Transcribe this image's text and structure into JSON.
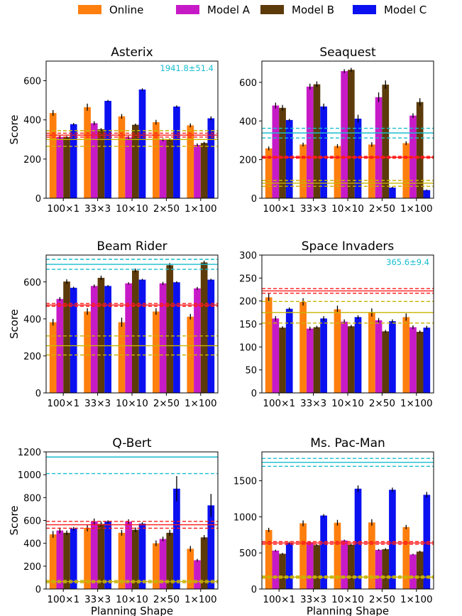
{
  "legend": {
    "position": "top-center",
    "items": [
      {
        "name": "Online",
        "color": "#ff7f0e"
      },
      {
        "name": "Model A",
        "color": "#c71ac7"
      },
      {
        "name": "Model B",
        "color": "#5c3a0a"
      },
      {
        "name": "Model C",
        "color": "#0a10f0"
      }
    ]
  },
  "colors": {
    "cyan": "#17becf",
    "red": "#ff1a1a",
    "olive": "#c8b400",
    "errorbar": "#000000"
  },
  "chart_data": [
    {
      "type": "bar",
      "title": "Asterix",
      "ylabel": "Score",
      "xlabel": "",
      "categories": [
        "100×1",
        "33×3",
        "10×10",
        "2×50",
        "1×100"
      ],
      "ylim": [
        0,
        700
      ],
      "yticks": [
        0,
        200,
        400,
        600
      ],
      "series": [
        {
          "name": "Online",
          "values": [
            435,
            465,
            418,
            388,
            372
          ],
          "errors": [
            15,
            18,
            12,
            12,
            10
          ]
        },
        {
          "name": "Model A",
          "values": [
            312,
            383,
            310,
            298,
            272
          ],
          "errors": [
            8,
            10,
            8,
            8,
            8
          ]
        },
        {
          "name": "Model B",
          "values": [
            312,
            352,
            375,
            300,
            282
          ],
          "errors": [
            6,
            6,
            6,
            6,
            6
          ]
        },
        {
          "name": "Model C",
          "values": [
            378,
            497,
            555,
            468,
            408
          ],
          "errors": [
            6,
            5,
            6,
            6,
            10
          ]
        }
      ],
      "reference_lines": [
        {
          "color": "red",
          "style": "solid",
          "value": 322
        },
        {
          "color": "red",
          "style": "dashed",
          "value": 312
        },
        {
          "color": "red",
          "style": "dashed",
          "value": 332
        },
        {
          "color": "olive",
          "style": "solid",
          "value": 300
        },
        {
          "color": "olive",
          "style": "dashed",
          "value": 265
        },
        {
          "color": "olive",
          "style": "dashed",
          "value": 345
        }
      ],
      "annotation": {
        "text": "1941.8±51.4",
        "color": "cyan"
      }
    },
    {
      "type": "bar",
      "title": "Seaquest",
      "ylabel": "",
      "xlabel": "",
      "categories": [
        "100×1",
        "33×3",
        "10×10",
        "2×50",
        "1×100"
      ],
      "ylim": [
        0,
        710
      ],
      "yticks": [
        0,
        200,
        400,
        600
      ],
      "series": [
        {
          "name": "Online",
          "values": [
            258,
            278,
            270,
            278,
            285
          ],
          "errors": [
            10,
            10,
            10,
            12,
            10
          ]
        },
        {
          "name": "Model A",
          "values": [
            480,
            578,
            658,
            523,
            428
          ],
          "errors": [
            15,
            15,
            10,
            25,
            12
          ]
        },
        {
          "name": "Model B",
          "values": [
            468,
            590,
            665,
            588,
            498
          ],
          "errors": [
            15,
            15,
            10,
            22,
            20
          ]
        },
        {
          "name": "Model C",
          "values": [
            405,
            475,
            412,
            55,
            42
          ],
          "errors": [
            6,
            15,
            20,
            4,
            3
          ]
        }
      ],
      "reference_lines": [
        {
          "color": "cyan",
          "style": "solid",
          "value": 338
        },
        {
          "color": "cyan",
          "style": "dashed",
          "value": 312
        },
        {
          "color": "cyan",
          "style": "dashed",
          "value": 362
        },
        {
          "color": "red",
          "style": "solid",
          "value": 212
        },
        {
          "color": "red",
          "style": "dashed",
          "value": 207
        },
        {
          "color": "red",
          "style": "dashed",
          "value": 217
        },
        {
          "color": "olive",
          "style": "solid",
          "value": 78
        },
        {
          "color": "olive",
          "style": "dashed",
          "value": 62
        },
        {
          "color": "olive",
          "style": "dashed",
          "value": 92
        }
      ]
    },
    {
      "type": "bar",
      "title": "Beam Rider",
      "ylabel": "Score",
      "xlabel": "",
      "categories": [
        "100×1",
        "33×3",
        "10×10",
        "2×50",
        "1×100"
      ],
      "ylim": [
        0,
        745
      ],
      "yticks": [
        0,
        200,
        400,
        600
      ],
      "series": [
        {
          "name": "Online",
          "values": [
            382,
            440,
            382,
            440,
            412
          ],
          "errors": [
            18,
            18,
            25,
            18,
            15
          ]
        },
        {
          "name": "Model A",
          "values": [
            508,
            578,
            592,
            592,
            565
          ],
          "errors": [
            10,
            8,
            6,
            8,
            8
          ]
        },
        {
          "name": "Model B",
          "values": [
            602,
            622,
            662,
            690,
            705
          ],
          "errors": [
            12,
            12,
            10,
            12,
            10
          ]
        },
        {
          "name": "Model C",
          "values": [
            568,
            578,
            612,
            598,
            612
          ],
          "errors": [
            6,
            5,
            5,
            5,
            5
          ]
        }
      ],
      "reference_lines": [
        {
          "color": "cyan",
          "style": "solid",
          "value": 695
        },
        {
          "color": "cyan",
          "style": "dashed",
          "value": 668
        },
        {
          "color": "cyan",
          "style": "dashed",
          "value": 722
        },
        {
          "color": "red",
          "style": "solid",
          "value": 475
        },
        {
          "color": "red",
          "style": "dashed",
          "value": 468
        },
        {
          "color": "red",
          "style": "dashed",
          "value": 483
        },
        {
          "color": "olive",
          "style": "solid",
          "value": 255
        },
        {
          "color": "olive",
          "style": "dashed",
          "value": 205
        },
        {
          "color": "olive",
          "style": "dashed",
          "value": 308
        }
      ]
    },
    {
      "type": "bar",
      "title": "Space Invaders",
      "ylabel": "",
      "xlabel": "",
      "categories": [
        "100×1",
        "33×3",
        "10×10",
        "2×50",
        "1×100"
      ],
      "ylim": [
        0,
        300
      ],
      "yticks": [
        0,
        50,
        100,
        150,
        200,
        250,
        300
      ],
      "series": [
        {
          "name": "Online",
          "values": [
            208,
            198,
            182,
            175,
            165
          ],
          "errors": [
            8,
            8,
            8,
            9,
            8
          ]
        },
        {
          "name": "Model A",
          "values": [
            162,
            140,
            155,
            158,
            143
          ],
          "errors": [
            5,
            4,
            5,
            5,
            4
          ]
        },
        {
          "name": "Model B",
          "values": [
            142,
            143,
            145,
            134,
            133
          ],
          "errors": [
            3,
            3,
            3,
            3,
            3
          ]
        },
        {
          "name": "Model C",
          "values": [
            183,
            162,
            165,
            156,
            142
          ],
          "errors": [
            3,
            5,
            4,
            4,
            4
          ]
        }
      ],
      "reference_lines": [
        {
          "color": "red",
          "style": "solid",
          "value": 222
        },
        {
          "color": "red",
          "style": "dashed",
          "value": 217
        },
        {
          "color": "red",
          "style": "dashed",
          "value": 227
        },
        {
          "color": "olive",
          "style": "solid",
          "value": 175
        },
        {
          "color": "olive",
          "style": "dashed",
          "value": 152
        },
        {
          "color": "olive",
          "style": "dashed",
          "value": 199
        }
      ],
      "annotation": {
        "text": "365.6±9.4",
        "color": "cyan"
      }
    },
    {
      "type": "bar",
      "title": "Q-Bert",
      "ylabel": "Score",
      "xlabel": "Planning Shape",
      "categories": [
        "100×1",
        "33×3",
        "10×10",
        "2×50",
        "1×100"
      ],
      "ylim": [
        0,
        1200
      ],
      "yticks": [
        0,
        200,
        400,
        600,
        800,
        1000,
        1200
      ],
      "series": [
        {
          "name": "Online",
          "values": [
            478,
            535,
            492,
            400,
            352
          ],
          "errors": [
            30,
            30,
            25,
            25,
            25
          ]
        },
        {
          "name": "Model A",
          "values": [
            512,
            592,
            590,
            438,
            252
          ],
          "errors": [
            25,
            25,
            20,
            20,
            12
          ]
        },
        {
          "name": "Model B",
          "values": [
            492,
            570,
            518,
            492,
            452
          ],
          "errors": [
            20,
            20,
            20,
            25,
            20
          ]
        },
        {
          "name": "Model C",
          "values": [
            528,
            590,
            572,
            878,
            732
          ],
          "errors": [
            15,
            12,
            12,
            110,
            100
          ]
        }
      ],
      "reference_lines": [
        {
          "color": "cyan",
          "style": "solid",
          "value": 1155
        },
        {
          "color": "cyan",
          "style": "dashed",
          "value": 1010
        },
        {
          "color": "red",
          "style": "solid",
          "value": 562
        },
        {
          "color": "red",
          "style": "dashed",
          "value": 532
        },
        {
          "color": "red",
          "style": "dashed",
          "value": 592
        },
        {
          "color": "olive",
          "style": "solid",
          "value": 65
        },
        {
          "color": "olive",
          "style": "dashed",
          "value": 55
        },
        {
          "color": "olive",
          "style": "dashed",
          "value": 75
        }
      ]
    },
    {
      "type": "bar",
      "title": "Ms. Pac-Man",
      "ylabel": "",
      "xlabel": "Planning Shape",
      "categories": [
        "100×1",
        "33×3",
        "10×10",
        "2×50",
        "1×100"
      ],
      "ylim": [
        0,
        1900
      ],
      "yticks": [
        0,
        500,
        1000,
        1500
      ],
      "series": [
        {
          "name": "Online",
          "values": [
            818,
            910,
            918,
            922,
            858
          ],
          "errors": [
            30,
            40,
            40,
            45,
            30
          ]
        },
        {
          "name": "Model A",
          "values": [
            532,
            648,
            672,
            542,
            478
          ],
          "errors": [
            12,
            12,
            12,
            12,
            10
          ]
        },
        {
          "name": "Model B",
          "values": [
            488,
            608,
            612,
            552,
            518
          ],
          "errors": [
            12,
            12,
            12,
            15,
            12
          ]
        },
        {
          "name": "Model C",
          "values": [
            640,
            1018,
            1390,
            1375,
            1305
          ],
          "errors": [
            15,
            20,
            45,
            30,
            40
          ]
        }
      ],
      "reference_lines": [
        {
          "color": "cyan",
          "style": "solid",
          "value": 1755
        },
        {
          "color": "cyan",
          "style": "dashed",
          "value": 1700
        },
        {
          "color": "cyan",
          "style": "dashed",
          "value": 1810
        },
        {
          "color": "red",
          "style": "solid",
          "value": 638
        },
        {
          "color": "red",
          "style": "dashed",
          "value": 620
        },
        {
          "color": "red",
          "style": "dashed",
          "value": 656
        },
        {
          "color": "olive",
          "style": "solid",
          "value": 165
        },
        {
          "color": "olive",
          "style": "dashed",
          "value": 150
        },
        {
          "color": "olive",
          "style": "dashed",
          "value": 180
        }
      ]
    }
  ]
}
